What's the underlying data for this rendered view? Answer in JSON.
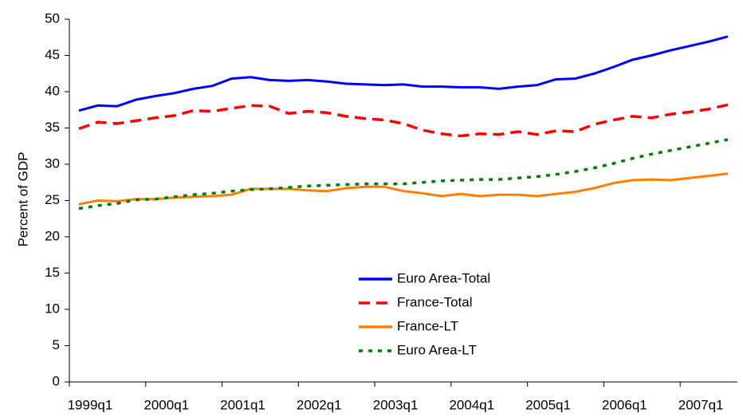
{
  "chart_data": {
    "type": "line",
    "y_label": "Percent of GDP",
    "categories": [
      "1999q1",
      null,
      null,
      null,
      "2000q1",
      null,
      null,
      null,
      "2001q1",
      null,
      null,
      null,
      "2002q1",
      null,
      null,
      null,
      "2003q1",
      null,
      null,
      null,
      "2004q1",
      null,
      null,
      null,
      "2005q1",
      null,
      null,
      null,
      "2006q1",
      null,
      null,
      null,
      "2007q1",
      null,
      null
    ],
    "ylim": [
      0,
      50
    ],
    "yticks": [
      0,
      5,
      10,
      15,
      20,
      25,
      30,
      35,
      40,
      45,
      50
    ],
    "series": [
      {
        "name": "Euro Area-Total",
        "color": "#0000ff",
        "dash": "solid",
        "values": [
          37.4,
          38.1,
          38.0,
          38.9,
          39.4,
          39.8,
          40.4,
          40.8,
          41.8,
          42.0,
          41.6,
          41.5,
          41.6,
          41.4,
          41.1,
          41.0,
          40.9,
          41.0,
          40.7,
          40.7,
          40.6,
          40.6,
          40.4,
          40.7,
          40.9,
          41.7,
          41.8,
          42.5,
          43.4,
          44.4,
          45.0,
          45.7,
          46.3,
          46.9,
          47.6
        ]
      },
      {
        "name": "France-Total",
        "color": "#ff0000",
        "dash": "dashed",
        "values": [
          34.9,
          35.8,
          35.6,
          36.0,
          36.4,
          36.7,
          37.4,
          37.3,
          37.7,
          38.1,
          38.0,
          37.0,
          37.3,
          37.1,
          36.6,
          36.3,
          36.1,
          35.6,
          34.7,
          34.2,
          33.9,
          34.2,
          34.1,
          34.5,
          34.1,
          34.6,
          34.5,
          35.5,
          36.1,
          36.6,
          36.4,
          36.9,
          37.2,
          37.6,
          38.2
        ]
      },
      {
        "name": "France-LT",
        "color": "#ff8000",
        "dash": "solid",
        "values": [
          24.5,
          25.0,
          24.9,
          25.2,
          25.2,
          25.4,
          25.5,
          25.6,
          25.8,
          26.6,
          26.6,
          26.6,
          26.4,
          26.3,
          26.7,
          26.9,
          26.9,
          26.3,
          26.0,
          25.6,
          25.9,
          25.6,
          25.8,
          25.8,
          25.6,
          25.9,
          26.2,
          26.7,
          27.4,
          27.8,
          27.9,
          27.8,
          28.1,
          28.4,
          28.7
        ]
      },
      {
        "name": "Euro Area-LT",
        "color": "#008000",
        "dash": "dotted",
        "values": [
          23.9,
          24.3,
          24.6,
          25.1,
          25.2,
          25.5,
          25.8,
          26.0,
          26.3,
          26.5,
          26.6,
          26.8,
          27.0,
          27.1,
          27.2,
          27.3,
          27.3,
          27.3,
          27.5,
          27.7,
          27.8,
          27.9,
          27.9,
          28.1,
          28.3,
          28.6,
          29.0,
          29.5,
          30.1,
          30.8,
          31.4,
          31.9,
          32.4,
          32.9,
          33.4
        ]
      }
    ]
  }
}
